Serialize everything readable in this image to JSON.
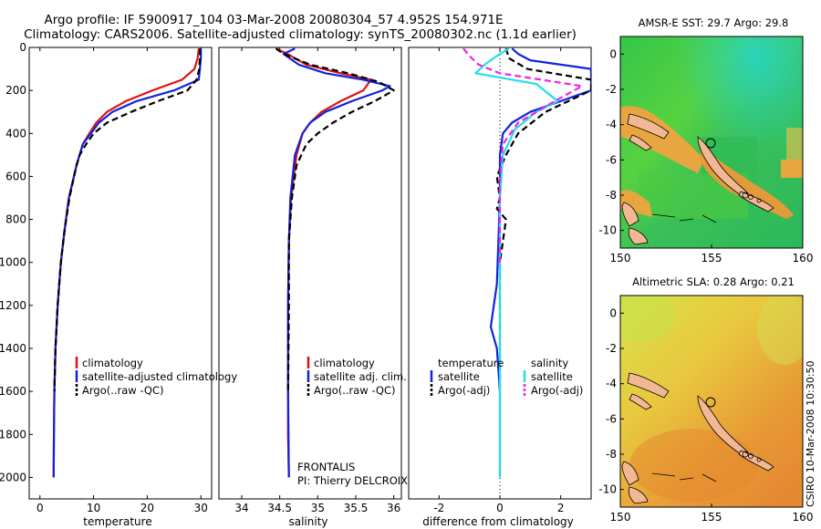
{
  "header": {
    "title_line1": "Argo profile: IF 5900917_104 03-Mar-2008 20080304_57 4.952S 154.971E",
    "title_line2": "Climatology: CARS2006. Satellite-adjusted climatology: synTS_20080302.nc (1.1d earlier)"
  },
  "credit": "CSIRO 10-Mar-2008 10:30:50",
  "colors": {
    "climatology": "#dd1111",
    "satellite": "#1122dd",
    "argo": "#000000",
    "satellite_diff_salinity": "#22dde8",
    "argo_adj_salinity": "#ee22ee",
    "land": "#f2b893",
    "circle": "#000000"
  },
  "chart_data": [
    {
      "id": "temperature",
      "type": "line",
      "xlabel": "temperature",
      "xlim": [
        -2,
        32
      ],
      "ylim": [
        2100,
        0
      ],
      "xticks": [
        0,
        10,
        20,
        30
      ],
      "yticks": [
        0,
        200,
        400,
        600,
        800,
        1000,
        1200,
        1400,
        1600,
        1800,
        2000
      ],
      "legend_position": "bottom-right",
      "legend": [
        "climatology",
        "satellite-adjusted climatology",
        "Argo(..raw -QC)"
      ],
      "series": [
        {
          "name": "climatology",
          "style": "solid",
          "color_key": "climatology",
          "x": [
            29.6,
            29.4,
            28.8,
            26.5,
            21.0,
            16.0,
            12.5,
            10.5,
            9.2,
            8.0,
            6.8,
            5.4,
            4.6,
            3.9,
            3.3,
            2.9,
            2.7,
            2.6,
            2.55
          ],
          "y": [
            5,
            50,
            100,
            150,
            200,
            250,
            300,
            350,
            400,
            450,
            550,
            700,
            850,
            1000,
            1200,
            1400,
            1600,
            1800,
            2000
          ]
        },
        {
          "name": "satellite-adjusted climatology",
          "style": "solid",
          "color_key": "satellite",
          "x": [
            30.0,
            30.0,
            29.8,
            29.6,
            25.0,
            18.0,
            13.5,
            11.0,
            9.5,
            8.0,
            6.8,
            5.4,
            4.6,
            3.9,
            3.3,
            2.9,
            2.7,
            2.6,
            2.55
          ],
          "y": [
            5,
            50,
            100,
            150,
            200,
            250,
            300,
            350,
            400,
            450,
            550,
            700,
            850,
            1000,
            1200,
            1400,
            1600,
            1800,
            2000
          ]
        },
        {
          "name": "Argo(..raw -QC)",
          "style": "dashed",
          "color_key": "argo",
          "x": [
            29.8,
            29.8,
            29.7,
            29.2,
            27.5,
            22.0,
            17.0,
            12.5,
            10.0,
            8.6,
            7.4,
            6.8,
            5.5,
            4.6,
            3.9,
            3.3,
            2.9,
            2.7
          ],
          "y": [
            5,
            50,
            100,
            150,
            200,
            250,
            300,
            350,
            400,
            450,
            500,
            550,
            700,
            850,
            1000,
            1200,
            1400,
            1600
          ]
        }
      ],
      "annotations": []
    },
    {
      "id": "salinity",
      "type": "line",
      "xlabel": "salinity",
      "xlim": [
        33.7,
        36.1
      ],
      "ylim": [
        2100,
        0
      ],
      "xticks": [
        34,
        34.5,
        35,
        35.5,
        36
      ],
      "xtick_labels": [
        "34",
        "34.5",
        "35",
        "35.5",
        "36"
      ],
      "legend_position": "bottom-right",
      "legend": [
        "climatology",
        "satellite adj. clim.",
        "Argo(..raw -QC)"
      ],
      "series": [
        {
          "name": "climatology",
          "style": "solid",
          "color_key": "climatology",
          "x": [
            34.45,
            34.6,
            34.85,
            35.3,
            35.7,
            35.6,
            35.3,
            35.05,
            34.9,
            34.8,
            34.72,
            34.65,
            34.62,
            34.61,
            34.61,
            34.61,
            34.62
          ],
          "y": [
            5,
            30,
            80,
            120,
            150,
            200,
            250,
            300,
            350,
            400,
            500,
            700,
            900,
            1200,
            1500,
            1800,
            2000
          ]
        },
        {
          "name": "satellite adj. clim.",
          "style": "solid",
          "color_key": "satellite",
          "x": [
            34.7,
            34.55,
            34.75,
            35.1,
            35.6,
            35.95,
            35.85,
            35.45,
            35.1,
            34.9,
            34.8,
            34.7,
            34.64,
            34.62,
            34.61,
            34.61,
            34.62
          ],
          "y": [
            5,
            30,
            80,
            120,
            150,
            180,
            200,
            250,
            300,
            350,
            400,
            500,
            700,
            900,
            1200,
            1600,
            2000
          ]
        },
        {
          "name": "Argo(..raw -QC)",
          "style": "dashed",
          "color_key": "argo",
          "x": [
            34.45,
            34.55,
            34.9,
            35.4,
            35.8,
            36.0,
            35.75,
            35.45,
            35.2,
            35.0,
            34.85,
            34.72,
            34.66,
            34.62,
            34.62,
            34.61
          ],
          "y": [
            5,
            30,
            80,
            120,
            160,
            200,
            250,
            300,
            350,
            400,
            450,
            550,
            700,
            900,
            1200,
            1600
          ]
        }
      ],
      "annotations": [
        "FRONTALIS",
        "PI: Thierry DELCROIX"
      ]
    },
    {
      "id": "difference",
      "type": "line",
      "xlabel": "difference from climatology",
      "xlim": [
        -3,
        3
      ],
      "ylim": [
        2100,
        0
      ],
      "xticks": [
        -2,
        0,
        2
      ],
      "zero_line": "dotted",
      "legend_position": "bottom",
      "legend": [
        "temperature",
        "satellite",
        "Argo(-adj)",
        "salinity",
        "satellite",
        "Argo(-adj)"
      ],
      "series": [
        {
          "name": "temperature satellite",
          "style": "solid",
          "color_key": "satellite",
          "x": [
            0.4,
            0.6,
            1.0,
            3.0,
            3.0,
            2.0,
            1.0,
            0.4,
            0.1,
            0.0,
            0.0,
            -0.1,
            -0.3,
            -0.1,
            0.0,
            0.0
          ],
          "y": [
            5,
            30,
            60,
            100,
            200,
            250,
            300,
            350,
            400,
            500,
            700,
            1100,
            1300,
            1400,
            1600,
            2000
          ]
        },
        {
          "name": "temperature Argo(-adj)",
          "style": "dashed",
          "color_key": "argo",
          "x": [
            0.2,
            0.3,
            0.9,
            3.0,
            3.0,
            1.5,
            0.6,
            0.2,
            -0.1,
            0.0,
            -0.1,
            0.2,
            0.0,
            0.0
          ],
          "y": [
            5,
            50,
            100,
            150,
            200,
            300,
            400,
            500,
            600,
            700,
            750,
            800,
            1000,
            1600
          ]
        },
        {
          "name": "salinity satellite",
          "style": "solid",
          "color_key": "satellite_diff_salinity",
          "x": [
            0.3,
            -0.1,
            -0.5,
            -0.8,
            1.2,
            1.9,
            1.2,
            0.5,
            0.1,
            0.0,
            0.0,
            0.0,
            0.0
          ],
          "y": [
            5,
            40,
            80,
            120,
            170,
            250,
            300,
            380,
            500,
            700,
            1000,
            1500,
            2000
          ]
        },
        {
          "name": "salinity Argo(-adj)",
          "style": "dashed",
          "color_key": "argo_adj_salinity",
          "x": [
            -1.2,
            -1.0,
            -0.7,
            0.0,
            2.7,
            1.8,
            0.6,
            0.1,
            0.0,
            0.0
          ],
          "y": [
            5,
            40,
            80,
            120,
            180,
            250,
            350,
            450,
            600,
            1000
          ]
        }
      ],
      "annotations": []
    },
    {
      "id": "sst_map",
      "type": "heatmap",
      "title": "AMSR-E SST: 29.7 Argo: 29.8",
      "xlim": [
        150,
        160
      ],
      "ylim": [
        -11,
        1
      ],
      "xticks": [
        150,
        155,
        160
      ],
      "yticks": [
        0,
        -2,
        -4,
        -6,
        -8,
        -10
      ],
      "argo_marker": [
        155,
        -5
      ],
      "colormap": "green-to-cyan, orange on land edges",
      "annotations": []
    },
    {
      "id": "sla_map",
      "type": "heatmap",
      "title": "Altimetric SLA: 0.28 Argo: 0.21",
      "xlim": [
        150,
        160
      ],
      "ylim": [
        -11,
        1
      ],
      "xticks": [
        150,
        155,
        160
      ],
      "yticks": [
        0,
        -2,
        -4,
        -6,
        -8,
        -10
      ],
      "argo_marker": [
        155,
        -5
      ],
      "colormap": "yellow-green to orange",
      "annotations": []
    }
  ]
}
